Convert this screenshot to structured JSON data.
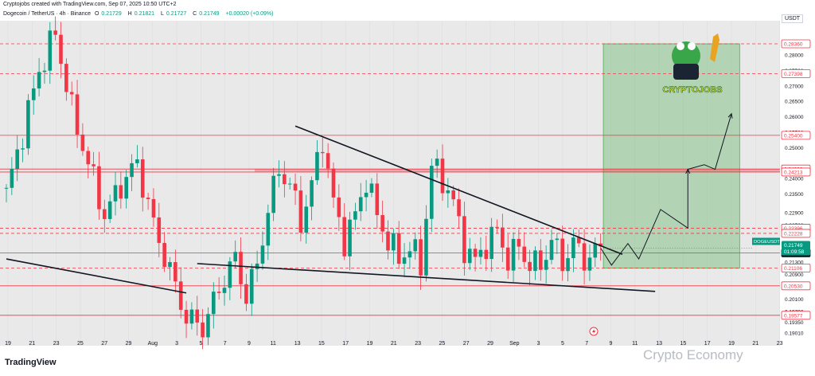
{
  "header": {
    "line1": "Cryptojobs created with TradingView.com, Sep 07, 2025 10:50 UTC+2",
    "symbol": "Dogecoin / TetherUS · 4h · Binance",
    "open_label": "O",
    "open": "0.21729",
    "high_label": "H",
    "high": "0.21821",
    "low_label": "L",
    "low": "0.21727",
    "close_label": "C",
    "close": "0.21749",
    "change": "+0.00020 (+0.09%)"
  },
  "footer": {
    "logo": "TradingView",
    "watermark": "Crypto Economy"
  },
  "overlay": {
    "brand_text": "CRYPTOJOBS",
    "lightning_icon": "lightning-icon"
  },
  "colors": {
    "background": "#e9e9ea",
    "bull": "#089981",
    "bear": "#f23645",
    "level_line": "#f23645",
    "trendline": "#131722",
    "target_zone": "#4caf50"
  },
  "chart_data": {
    "type": "candlestick",
    "title": "",
    "xlabel": "",
    "ylabel": "",
    "y_unit": "USDT",
    "ylim": [
      0.1885,
      0.2885
    ],
    "x_tick_labels": [
      "19",
      "21",
      "23",
      "25",
      "27",
      "29",
      "Aug",
      "3",
      "5",
      "7",
      "9",
      "11",
      "13",
      "15",
      "17",
      "19",
      "21",
      "23",
      "25",
      "27",
      "29",
      "Sep",
      "3",
      "5",
      "7",
      "9",
      "11",
      "13",
      "15",
      "17",
      "19",
      "21",
      "23"
    ],
    "y_tick_labels": [
      "0.28000",
      "0.27500",
      "0.27000",
      "0.26500",
      "0.26000",
      "0.25500",
      "0.25000",
      "0.24000",
      "0.23500",
      "0.22900",
      "0.22500",
      "0.21300",
      "0.20900",
      "0.20100",
      "0.19700",
      "0.19350",
      "0.19010"
    ],
    "price_levels": [
      {
        "label": "0.28360",
        "value": 0.2836,
        "style": "dashed"
      },
      {
        "label": "0.27398",
        "value": 0.27398,
        "style": "dashed"
      },
      {
        "label": "0.25400",
        "value": 0.254,
        "style": "solid"
      },
      {
        "label": "0.24309",
        "value": 0.24309,
        "style": "solid"
      },
      {
        "label": "0.24213",
        "value": 0.24213,
        "style": "solid"
      },
      {
        "label": "0.22396",
        "value": 0.22396,
        "style": "dashed"
      },
      {
        "label": "0.22228",
        "value": 0.22228,
        "style": "dashed"
      },
      {
        "label": "0.21595",
        "value": 0.21595,
        "style": "solid"
      },
      {
        "label": "0.21106",
        "value": 0.21106,
        "style": "dashed"
      },
      {
        "label": "0.20530",
        "value": 0.2053,
        "style": "solid"
      },
      {
        "label": "0.19577",
        "value": 0.19577,
        "style": "solid"
      }
    ],
    "current_price": {
      "symbol": "DOGEUSDT",
      "price": "0.21749",
      "countdown": "01:09:58",
      "value": 0.21749
    },
    "anchors": [
      [
        0,
        0.235
      ],
      [
        3,
        0.255
      ],
      [
        6,
        0.275
      ],
      [
        9,
        0.287
      ],
      [
        12,
        0.262
      ],
      [
        15,
        0.245
      ],
      [
        18,
        0.228
      ],
      [
        21,
        0.238
      ],
      [
        24,
        0.245
      ],
      [
        27,
        0.225
      ],
      [
        30,
        0.21
      ],
      [
        33,
        0.195
      ],
      [
        36,
        0.192
      ],
      [
        38,
        0.2
      ],
      [
        40,
        0.208
      ],
      [
        42,
        0.214
      ],
      [
        44,
        0.202
      ],
      [
        46,
        0.212
      ],
      [
        48,
        0.23
      ],
      [
        50,
        0.243
      ],
      [
        52,
        0.238
      ],
      [
        54,
        0.226
      ],
      [
        56,
        0.238
      ],
      [
        58,
        0.253
      ],
      [
        60,
        0.232
      ],
      [
        62,
        0.22
      ],
      [
        64,
        0.228
      ],
      [
        66,
        0.24
      ],
      [
        68,
        0.228
      ],
      [
        70,
        0.22
      ],
      [
        72,
        0.214
      ],
      [
        74,
        0.218
      ],
      [
        76,
        0.212
      ],
      [
        78,
        0.244
      ],
      [
        80,
        0.24
      ],
      [
        82,
        0.232
      ],
      [
        84,
        0.218
      ],
      [
        86,
        0.213
      ],
      [
        88,
        0.219
      ],
      [
        90,
        0.223
      ],
      [
        92,
        0.214
      ],
      [
        94,
        0.218
      ],
      [
        96,
        0.212
      ],
      [
        98,
        0.212
      ],
      [
        100,
        0.22
      ],
      [
        102,
        0.213
      ],
      [
        104,
        0.219
      ],
      [
        106,
        0.214
      ],
      [
        108,
        0.216
      ],
      [
        109,
        0.2175
      ]
    ],
    "trendlines": [
      {
        "name": "upper-descending",
        "from": [
          53,
          0.257
        ],
        "to": [
          113,
          0.2155
        ]
      },
      {
        "name": "lower-right-support",
        "from": [
          35,
          0.2125
        ],
        "to": [
          119,
          0.2035
        ]
      },
      {
        "name": "lower-left-support",
        "from": [
          0,
          0.214
        ],
        "to": [
          33,
          0.203
        ]
      }
    ],
    "projection_path": [
      [
        109,
        0.2175
      ],
      [
        111,
        0.212
      ],
      [
        114,
        0.219
      ],
      [
        116,
        0.214
      ],
      [
        120,
        0.23
      ],
      [
        125,
        0.224
      ],
      [
        125,
        0.243
      ]
    ],
    "projection_arrow": [
      [
        125,
        0.243
      ],
      [
        128,
        0.2445
      ],
      [
        130,
        0.243
      ],
      [
        133,
        0.261
      ]
    ],
    "target_zone": {
      "x_from": 109.5,
      "x_to": 134.5,
      "y_from": 0.211,
      "y_to": 0.2836
    }
  }
}
